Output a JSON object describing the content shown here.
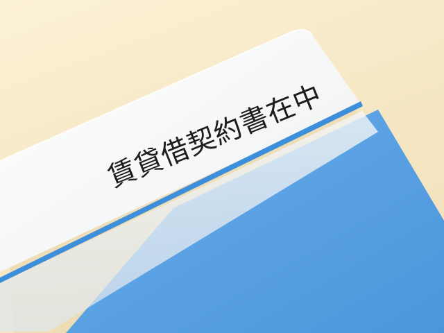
{
  "label": {
    "text": "賃貸借契約書在中"
  },
  "colors": {
    "background": "#f6e6c2",
    "folder_blue": "#5aa2e3",
    "folder_blue_dark": "#4a90d6",
    "stripe_blue": "#3d8fdc",
    "cover_white": "#f7f8f8",
    "text": "#1f1c1a"
  }
}
